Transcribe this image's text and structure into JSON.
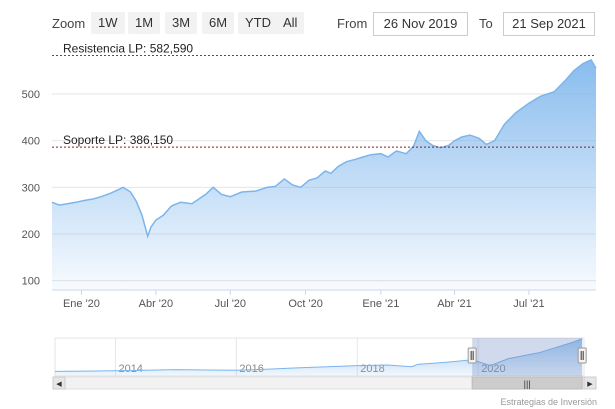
{
  "toolbar": {
    "zoom_label": "Zoom",
    "buttons": [
      "1W",
      "1M",
      "3M",
      "6M",
      "YTD",
      "All"
    ],
    "from_label": "From",
    "from_value": "26 Nov 2019",
    "to_label": "To",
    "to_value": "21 Sep 2021"
  },
  "colors": {
    "series_line": "#7cb5ec",
    "area_top": "#7cb5ec",
    "resistance_line": "#1a7a1a",
    "support_line": "#8b1a1a"
  },
  "chart_data": {
    "type": "area",
    "x_range": [
      "2019-11-26",
      "2021-09-21"
    ],
    "ylim": [
      80,
      590
    ],
    "y_ticks": [
      100,
      200,
      300,
      400,
      500
    ],
    "x_ticks": [
      "Ene '20",
      "Abr '20",
      "Jul '20",
      "Oct '20",
      "Ene '21",
      "Abr '21",
      "Jul '21"
    ],
    "grid": true,
    "series": [
      {
        "values": [
          [
            "2019-11-26",
            268
          ],
          [
            "2019-12-05",
            262
          ],
          [
            "2019-12-15",
            265
          ],
          [
            "2019-12-25",
            268
          ],
          [
            "2020-01-05",
            272
          ],
          [
            "2020-01-15",
            275
          ],
          [
            "2020-01-25",
            280
          ],
          [
            "2020-02-05",
            287
          ],
          [
            "2020-02-15",
            295
          ],
          [
            "2020-02-21",
            300
          ],
          [
            "2020-03-01",
            290
          ],
          [
            "2020-03-08",
            270
          ],
          [
            "2020-03-15",
            240
          ],
          [
            "2020-03-22",
            195
          ],
          [
            "2020-03-26",
            215
          ],
          [
            "2020-04-01",
            230
          ],
          [
            "2020-04-10",
            240
          ],
          [
            "2020-04-20",
            260
          ],
          [
            "2020-05-01",
            268
          ],
          [
            "2020-05-15",
            265
          ],
          [
            "2020-06-01",
            285
          ],
          [
            "2020-06-10",
            300
          ],
          [
            "2020-06-20",
            285
          ],
          [
            "2020-07-01",
            280
          ],
          [
            "2020-07-15",
            290
          ],
          [
            "2020-08-01",
            292
          ],
          [
            "2020-08-15",
            300
          ],
          [
            "2020-08-25",
            302
          ],
          [
            "2020-09-05",
            318
          ],
          [
            "2020-09-15",
            305
          ],
          [
            "2020-09-25",
            300
          ],
          [
            "2020-10-05",
            315
          ],
          [
            "2020-10-15",
            320
          ],
          [
            "2020-10-25",
            335
          ],
          [
            "2020-11-01",
            330
          ],
          [
            "2020-11-10",
            345
          ],
          [
            "2020-11-20",
            355
          ],
          [
            "2020-12-01",
            360
          ],
          [
            "2020-12-10",
            365
          ],
          [
            "2020-12-20",
            370
          ],
          [
            "2021-01-01",
            372
          ],
          [
            "2021-01-10",
            365
          ],
          [
            "2021-01-20",
            378
          ],
          [
            "2021-02-01",
            372
          ],
          [
            "2021-02-10",
            388
          ],
          [
            "2021-02-17",
            420
          ],
          [
            "2021-02-25",
            400
          ],
          [
            "2021-03-05",
            390
          ],
          [
            "2021-03-15",
            385
          ],
          [
            "2021-03-25",
            390
          ],
          [
            "2021-04-01",
            400
          ],
          [
            "2021-04-10",
            408
          ],
          [
            "2021-04-20",
            412
          ],
          [
            "2021-05-01",
            405
          ],
          [
            "2021-05-10",
            392
          ],
          [
            "2021-05-20",
            400
          ],
          [
            "2021-06-01",
            435
          ],
          [
            "2021-06-15",
            460
          ],
          [
            "2021-07-01",
            480
          ],
          [
            "2021-07-15",
            495
          ],
          [
            "2021-08-01",
            505
          ],
          [
            "2021-08-15",
            530
          ],
          [
            "2021-08-25",
            550
          ],
          [
            "2021-09-05",
            565
          ],
          [
            "2021-09-15",
            573
          ],
          [
            "2021-09-21",
            555
          ]
        ]
      }
    ],
    "annotations": [
      {
        "label": "Resistencia LP: 582,590",
        "value": 582.59
      },
      {
        "label": "Soporte LP: 386,150",
        "value": 386.15
      }
    ]
  },
  "navigator": {
    "labels": [
      "2014",
      "2016",
      "2018",
      "2020"
    ],
    "selection_start_year": 2019.9,
    "selection_end_year": 2021.72,
    "axis_start_year": 2013.0,
    "axis_end_year": 2021.75,
    "history": [
      [
        2013.0,
        100
      ],
      [
        2013.5,
        102
      ],
      [
        2014.0,
        105
      ],
      [
        2014.5,
        110
      ],
      [
        2015.0,
        115
      ],
      [
        2015.5,
        112
      ],
      [
        2016.0,
        110
      ],
      [
        2016.5,
        118
      ],
      [
        2017.0,
        130
      ],
      [
        2017.5,
        140
      ],
      [
        2018.0,
        150
      ],
      [
        2018.5,
        155
      ],
      [
        2018.9,
        140
      ],
      [
        2019.0,
        160
      ],
      [
        2019.5,
        180
      ],
      [
        2019.9,
        200
      ],
      [
        2020.2,
        150
      ],
      [
        2020.5,
        210
      ],
      [
        2021.0,
        260
      ],
      [
        2021.5,
        340
      ],
      [
        2021.72,
        380
      ]
    ],
    "scroll_left": "◀",
    "scroll_right": "▶",
    "grip": "|||"
  },
  "credit": "Estrategias de Inversión"
}
